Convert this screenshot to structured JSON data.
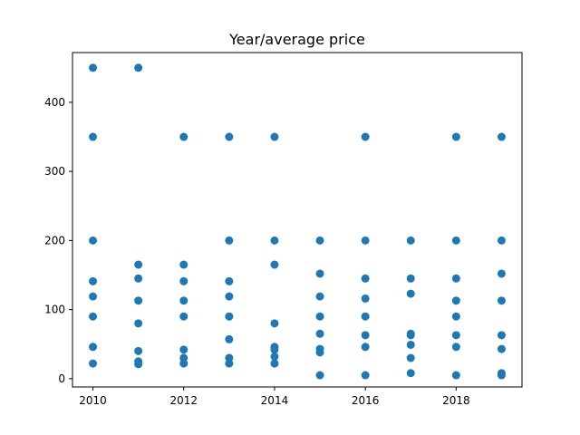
{
  "chart_data": {
    "type": "scatter",
    "title": "Year/average price",
    "xlabel": "",
    "ylabel": "",
    "xlim": [
      2009.55,
      2019.45
    ],
    "ylim": [
      -12,
      472
    ],
    "xticks": [
      2010,
      2012,
      2014,
      2016,
      2018
    ],
    "yticks": [
      0,
      100,
      200,
      300,
      400
    ],
    "grid": false,
    "marker_color": "#1f77b4",
    "points": [
      {
        "x": 2010,
        "y": 22
      },
      {
        "x": 2010,
        "y": 46
      },
      {
        "x": 2010,
        "y": 90
      },
      {
        "x": 2010,
        "y": 119
      },
      {
        "x": 2010,
        "y": 141
      },
      {
        "x": 2010,
        "y": 200
      },
      {
        "x": 2010,
        "y": 350
      },
      {
        "x": 2010,
        "y": 450
      },
      {
        "x": 2011,
        "y": 21
      },
      {
        "x": 2011,
        "y": 25
      },
      {
        "x": 2011,
        "y": 40
      },
      {
        "x": 2011,
        "y": 80
      },
      {
        "x": 2011,
        "y": 113
      },
      {
        "x": 2011,
        "y": 145
      },
      {
        "x": 2011,
        "y": 165
      },
      {
        "x": 2011,
        "y": 450
      },
      {
        "x": 2012,
        "y": 22
      },
      {
        "x": 2012,
        "y": 30
      },
      {
        "x": 2012,
        "y": 42
      },
      {
        "x": 2012,
        "y": 90
      },
      {
        "x": 2012,
        "y": 113
      },
      {
        "x": 2012,
        "y": 141
      },
      {
        "x": 2012,
        "y": 165
      },
      {
        "x": 2012,
        "y": 350
      },
      {
        "x": 2013,
        "y": 22
      },
      {
        "x": 2013,
        "y": 30
      },
      {
        "x": 2013,
        "y": 57
      },
      {
        "x": 2013,
        "y": 90
      },
      {
        "x": 2013,
        "y": 119
      },
      {
        "x": 2013,
        "y": 141
      },
      {
        "x": 2013,
        "y": 200
      },
      {
        "x": 2013,
        "y": 350
      },
      {
        "x": 2014,
        "y": 22
      },
      {
        "x": 2014,
        "y": 32
      },
      {
        "x": 2014,
        "y": 42
      },
      {
        "x": 2014,
        "y": 46
      },
      {
        "x": 2014,
        "y": 80
      },
      {
        "x": 2014,
        "y": 165
      },
      {
        "x": 2014,
        "y": 200
      },
      {
        "x": 2014,
        "y": 350
      },
      {
        "x": 2015,
        "y": 5
      },
      {
        "x": 2015,
        "y": 38
      },
      {
        "x": 2015,
        "y": 43
      },
      {
        "x": 2015,
        "y": 65
      },
      {
        "x": 2015,
        "y": 90
      },
      {
        "x": 2015,
        "y": 119
      },
      {
        "x": 2015,
        "y": 152
      },
      {
        "x": 2015,
        "y": 200
      },
      {
        "x": 2016,
        "y": 5
      },
      {
        "x": 2016,
        "y": 46
      },
      {
        "x": 2016,
        "y": 63
      },
      {
        "x": 2016,
        "y": 90
      },
      {
        "x": 2016,
        "y": 116
      },
      {
        "x": 2016,
        "y": 145
      },
      {
        "x": 2016,
        "y": 200
      },
      {
        "x": 2016,
        "y": 350
      },
      {
        "x": 2017,
        "y": 8
      },
      {
        "x": 2017,
        "y": 30
      },
      {
        "x": 2017,
        "y": 49
      },
      {
        "x": 2017,
        "y": 63
      },
      {
        "x": 2017,
        "y": 65
      },
      {
        "x": 2017,
        "y": 123
      },
      {
        "x": 2017,
        "y": 145
      },
      {
        "x": 2017,
        "y": 200
      },
      {
        "x": 2018,
        "y": 5
      },
      {
        "x": 2018,
        "y": 46
      },
      {
        "x": 2018,
        "y": 63
      },
      {
        "x": 2018,
        "y": 90
      },
      {
        "x": 2018,
        "y": 113
      },
      {
        "x": 2018,
        "y": 145
      },
      {
        "x": 2018,
        "y": 200
      },
      {
        "x": 2018,
        "y": 350
      },
      {
        "x": 2019,
        "y": 5
      },
      {
        "x": 2019,
        "y": 8
      },
      {
        "x": 2019,
        "y": 43
      },
      {
        "x": 2019,
        "y": 63
      },
      {
        "x": 2019,
        "y": 113
      },
      {
        "x": 2019,
        "y": 152
      },
      {
        "x": 2019,
        "y": 200
      },
      {
        "x": 2019,
        "y": 350
      }
    ]
  }
}
